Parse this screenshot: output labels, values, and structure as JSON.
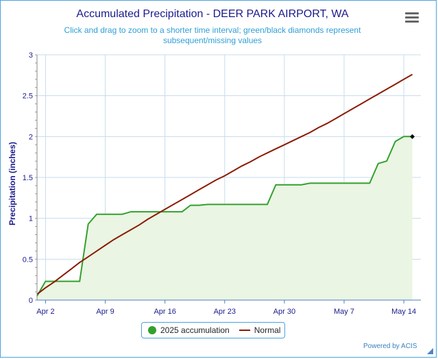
{
  "title": "Accumulated Precipitation - DEER PARK AIRPORT, WA",
  "subtitle": "Click and drag to zoom to a shorter time interval; green/black diamonds represent subsequent/missing values",
  "credit": "Powered by ACIS",
  "menu_icon": "hamburger-menu-icon",
  "legend": {
    "accumulation_label": "2025 accumulation",
    "normal_label": "Normal"
  },
  "colors": {
    "accumulation_line": "#33a02c",
    "accumulation_fill": "#eaf5e3",
    "normal_line": "#8b1a00",
    "grid": "#c5dcef",
    "axis_text": "#1a1a8c"
  },
  "chart_data": {
    "type": "line",
    "title": "Accumulated Precipitation - DEER PARK AIRPORT, WA",
    "ylabel": "Precipitation (inches)",
    "xlabel": "",
    "ylim": [
      0,
      3
    ],
    "yticks": [
      "0",
      "0.5",
      "1",
      "1.5",
      "2",
      "2.5",
      "3"
    ],
    "xlim": [
      "2025-04-01",
      "2025-05-16"
    ],
    "xticks": [
      {
        "date": "2025-04-02",
        "label": "Apr 2"
      },
      {
        "date": "2025-04-09",
        "label": "Apr 9"
      },
      {
        "date": "2025-04-16",
        "label": "Apr 16"
      },
      {
        "date": "2025-04-23",
        "label": "Apr 23"
      },
      {
        "date": "2025-04-30",
        "label": "Apr 30"
      },
      {
        "date": "2025-05-07",
        "label": "May 7"
      },
      {
        "date": "2025-05-14",
        "label": "May 14"
      }
    ],
    "grid": true,
    "legend_position": "bottom-center",
    "series": [
      {
        "name": "2025 accumulation",
        "style": "area",
        "points": [
          [
            "2025-04-01",
            0.05
          ],
          [
            "2025-04-02",
            0.23
          ],
          [
            "2025-04-03",
            0.23
          ],
          [
            "2025-04-04",
            0.23
          ],
          [
            "2025-04-05",
            0.23
          ],
          [
            "2025-04-06",
            0.23
          ],
          [
            "2025-04-07",
            0.93
          ],
          [
            "2025-04-08",
            1.05
          ],
          [
            "2025-04-09",
            1.05
          ],
          [
            "2025-04-10",
            1.05
          ],
          [
            "2025-04-11",
            1.05
          ],
          [
            "2025-04-12",
            1.08
          ],
          [
            "2025-04-13",
            1.08
          ],
          [
            "2025-04-14",
            1.08
          ],
          [
            "2025-04-15",
            1.08
          ],
          [
            "2025-04-16",
            1.08
          ],
          [
            "2025-04-17",
            1.08
          ],
          [
            "2025-04-18",
            1.08
          ],
          [
            "2025-04-19",
            1.16
          ],
          [
            "2025-04-20",
            1.16
          ],
          [
            "2025-04-21",
            1.17
          ],
          [
            "2025-04-22",
            1.17
          ],
          [
            "2025-04-23",
            1.17
          ],
          [
            "2025-04-24",
            1.17
          ],
          [
            "2025-04-25",
            1.17
          ],
          [
            "2025-04-26",
            1.17
          ],
          [
            "2025-04-27",
            1.17
          ],
          [
            "2025-04-28",
            1.17
          ],
          [
            "2025-04-29",
            1.41
          ],
          [
            "2025-04-30",
            1.41
          ],
          [
            "2025-05-01",
            1.41
          ],
          [
            "2025-05-02",
            1.41
          ],
          [
            "2025-05-03",
            1.43
          ],
          [
            "2025-05-04",
            1.43
          ],
          [
            "2025-05-05",
            1.43
          ],
          [
            "2025-05-06",
            1.43
          ],
          [
            "2025-05-07",
            1.43
          ],
          [
            "2025-05-08",
            1.43
          ],
          [
            "2025-05-09",
            1.43
          ],
          [
            "2025-05-10",
            1.43
          ],
          [
            "2025-05-11",
            1.67
          ],
          [
            "2025-05-12",
            1.7
          ],
          [
            "2025-05-13",
            1.94
          ],
          [
            "2025-05-14",
            2.0
          ],
          [
            "2025-05-15",
            2.0
          ]
        ],
        "end_marker": "black-diamond"
      },
      {
        "name": "Normal",
        "style": "line",
        "points": [
          [
            "2025-04-01",
            0.07
          ],
          [
            "2025-04-02",
            0.15
          ],
          [
            "2025-04-03",
            0.22
          ],
          [
            "2025-04-04",
            0.3
          ],
          [
            "2025-04-05",
            0.38
          ],
          [
            "2025-04-06",
            0.46
          ],
          [
            "2025-04-07",
            0.53
          ],
          [
            "2025-04-08",
            0.6
          ],
          [
            "2025-04-09",
            0.67
          ],
          [
            "2025-04-10",
            0.74
          ],
          [
            "2025-04-11",
            0.8
          ],
          [
            "2025-04-12",
            0.86
          ],
          [
            "2025-04-13",
            0.92
          ],
          [
            "2025-04-14",
            0.99
          ],
          [
            "2025-04-15",
            1.05
          ],
          [
            "2025-04-16",
            1.11
          ],
          [
            "2025-04-17",
            1.17
          ],
          [
            "2025-04-18",
            1.23
          ],
          [
            "2025-04-19",
            1.29
          ],
          [
            "2025-04-20",
            1.35
          ],
          [
            "2025-04-21",
            1.41
          ],
          [
            "2025-04-22",
            1.47
          ],
          [
            "2025-04-23",
            1.52
          ],
          [
            "2025-04-24",
            1.58
          ],
          [
            "2025-04-25",
            1.64
          ],
          [
            "2025-04-26",
            1.69
          ],
          [
            "2025-04-27",
            1.75
          ],
          [
            "2025-04-28",
            1.8
          ],
          [
            "2025-04-29",
            1.85
          ],
          [
            "2025-04-30",
            1.9
          ],
          [
            "2025-05-01",
            1.95
          ],
          [
            "2025-05-02",
            2.0
          ],
          [
            "2025-05-03",
            2.05
          ],
          [
            "2025-05-04",
            2.11
          ],
          [
            "2025-05-05",
            2.16
          ],
          [
            "2025-05-06",
            2.22
          ],
          [
            "2025-05-07",
            2.28
          ],
          [
            "2025-05-08",
            2.34
          ],
          [
            "2025-05-09",
            2.4
          ],
          [
            "2025-05-10",
            2.46
          ],
          [
            "2025-05-11",
            2.52
          ],
          [
            "2025-05-12",
            2.58
          ],
          [
            "2025-05-13",
            2.64
          ],
          [
            "2025-05-14",
            2.7
          ],
          [
            "2025-05-15",
            2.76
          ]
        ]
      }
    ]
  }
}
